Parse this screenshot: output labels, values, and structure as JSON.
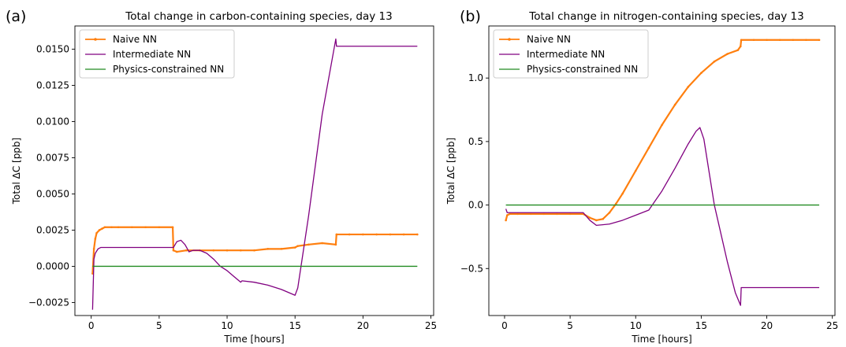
{
  "chart_data": [
    {
      "type": "line",
      "panel_label": "(a)",
      "title": "Total change in carbon-containing species, day 13",
      "xlabel": "Time [hours]",
      "ylabel": "Total ΔC [ppb]",
      "xlim": [
        -1.2,
        25.2
      ],
      "ylim": [
        -0.0034,
        0.0166
      ],
      "xticks": [
        0,
        5,
        10,
        15,
        20,
        25
      ],
      "xtick_labels": [
        "0",
        "5",
        "10",
        "15",
        "20",
        "25"
      ],
      "yticks": [
        -0.0025,
        0.0,
        0.0025,
        0.005,
        0.0075,
        0.01,
        0.0125,
        0.015
      ],
      "ytick_labels": [
        "−0.0025",
        "0.0000",
        "0.0025",
        "0.0050",
        "0.0075",
        "0.0100",
        "0.0125",
        "0.0150"
      ],
      "legend_position": "top-left",
      "grid": false,
      "series": [
        {
          "name": "Naive NN",
          "color": "#ff7f0e",
          "marker": true,
          "x": [
            0.1,
            0.2,
            0.3,
            0.4,
            0.6,
            0.8,
            1.0,
            1.5,
            2,
            3,
            4,
            5,
            6,
            6.05,
            6.3,
            7,
            8,
            9,
            10,
            11,
            12,
            13,
            14,
            15,
            15.2,
            16,
            17,
            18,
            18.05,
            19,
            20,
            21,
            22,
            23,
            24
          ],
          "y": [
            -0.0005,
            0.0012,
            0.0019,
            0.0023,
            0.0025,
            0.0026,
            0.0027,
            0.0027,
            0.0027,
            0.0027,
            0.0027,
            0.0027,
            0.0027,
            0.0011,
            0.001,
            0.0011,
            0.0011,
            0.0011,
            0.0011,
            0.0011,
            0.0011,
            0.0012,
            0.0012,
            0.0013,
            0.0014,
            0.0015,
            0.0016,
            0.0015,
            0.0022,
            0.0022,
            0.0022,
            0.0022,
            0.0022,
            0.0022,
            0.0022
          ]
        },
        {
          "name": "Intermediate NN",
          "color": "#800080",
          "marker": false,
          "x": [
            0.1,
            0.2,
            0.3,
            0.5,
            0.7,
            1,
            1.5,
            2,
            3,
            4,
            5,
            6,
            6.05,
            6.3,
            6.6,
            6.9,
            7.2,
            7.5,
            8,
            8.5,
            9,
            9.5,
            10,
            10.5,
            11,
            11.1,
            12,
            13,
            14,
            15,
            15.2,
            16,
            17,
            18,
            18.05,
            19,
            20,
            21,
            22,
            23,
            24
          ],
          "y": [
            -0.003,
            0.0005,
            0.0009,
            0.0012,
            0.0013,
            0.0013,
            0.0013,
            0.0013,
            0.0013,
            0.0013,
            0.0013,
            0.0013,
            0.0013,
            0.0017,
            0.0018,
            0.0015,
            0.001,
            0.0011,
            0.0011,
            0.0009,
            0.0005,
            0.0,
            -0.0003,
            -0.0007,
            -0.0011,
            -0.001,
            -0.0011,
            -0.0013,
            -0.0016,
            -0.002,
            -0.0015,
            0.0035,
            0.0105,
            0.0157,
            0.0152,
            0.0152,
            0.0152,
            0.0152,
            0.0152,
            0.0152,
            0.0152
          ]
        },
        {
          "name": "Physics-constrained NN",
          "color": "#228b22",
          "marker": false,
          "x": [
            0.1,
            24
          ],
          "y": [
            0.0,
            0.0
          ]
        }
      ]
    },
    {
      "type": "line",
      "panel_label": "(b)",
      "title": "Total change in nitrogen-containing species, day 13",
      "xlabel": "Time [hours]",
      "ylabel": "Total ΔC [ppb]",
      "xlim": [
        -1.2,
        25.2
      ],
      "ylim": [
        -0.87,
        1.41
      ],
      "xticks": [
        0,
        5,
        10,
        15,
        20,
        25
      ],
      "xtick_labels": [
        "0",
        "5",
        "10",
        "15",
        "20",
        "25"
      ],
      "yticks": [
        -0.5,
        0.0,
        0.5,
        1.0
      ],
      "ytick_labels": [
        "−0.5",
        "0.0",
        "0.5",
        "1.0"
      ],
      "legend_position": "top-left",
      "grid": false,
      "series": [
        {
          "name": "Naive NN",
          "color": "#ff7f0e",
          "marker": true,
          "x": [
            0.1,
            0.2,
            0.4,
            1,
            2,
            3,
            4,
            5,
            6,
            6.5,
            7,
            7.5,
            8,
            8.5,
            9,
            10,
            11,
            12,
            13,
            14,
            15,
            16,
            17,
            17.8,
            18,
            18.05,
            19,
            20,
            21,
            22,
            23,
            24
          ],
          "y": [
            -0.12,
            -0.08,
            -0.07,
            -0.07,
            -0.07,
            -0.07,
            -0.07,
            -0.07,
            -0.07,
            -0.1,
            -0.12,
            -0.11,
            -0.06,
            0.01,
            0.09,
            0.27,
            0.45,
            0.63,
            0.79,
            0.93,
            1.04,
            1.13,
            1.19,
            1.22,
            1.25,
            1.3,
            1.3,
            1.3,
            1.3,
            1.3,
            1.3,
            1.3
          ]
        },
        {
          "name": "Intermediate NN",
          "color": "#800080",
          "marker": false,
          "x": [
            0.1,
            0.2,
            1,
            3,
            6,
            6.5,
            7,
            8,
            9,
            10,
            11,
            12,
            13,
            14,
            14.6,
            14.9,
            15.2,
            16,
            17,
            17.6,
            18,
            18.05,
            19,
            20,
            21,
            22,
            23,
            24
          ],
          "y": [
            -0.03,
            -0.06,
            -0.06,
            -0.06,
            -0.06,
            -0.12,
            -0.16,
            -0.15,
            -0.12,
            -0.08,
            -0.04,
            0.11,
            0.29,
            0.48,
            0.58,
            0.61,
            0.52,
            0.0,
            -0.45,
            -0.69,
            -0.79,
            -0.65,
            -0.65,
            -0.65,
            -0.65,
            -0.65,
            -0.65,
            -0.65
          ]
        },
        {
          "name": "Physics-constrained NN",
          "color": "#228b22",
          "marker": false,
          "x": [
            0.1,
            24
          ],
          "y": [
            0.0,
            0.0
          ]
        }
      ]
    }
  ]
}
